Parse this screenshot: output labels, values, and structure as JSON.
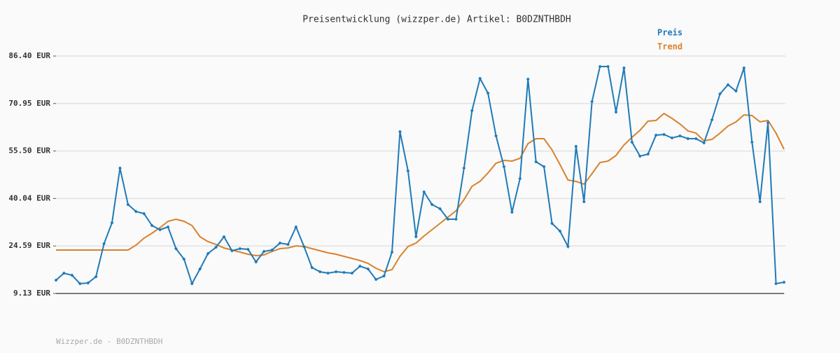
{
  "chart_data": {
    "type": "line",
    "title": "Preisentwicklung (wizzper.de) Artikel: B0DZNTHBDH",
    "footer": "Wizzper.de - B0DZNTHBDH",
    "ylim": [
      9.13,
      86.4
    ],
    "yticks": [
      {
        "value": 9.13,
        "label": "9.13 EUR"
      },
      {
        "value": 24.59,
        "label": "24.59 EUR"
      },
      {
        "value": 40.04,
        "label": "40.04 EUR"
      },
      {
        "value": 55.5,
        "label": "55.50 EUR"
      },
      {
        "value": 70.95,
        "label": "70.95 EUR"
      },
      {
        "value": 86.4,
        "label": "86.40 EUR"
      }
    ],
    "grid": true,
    "legend": "top-right",
    "series": [
      {
        "name": "Preis",
        "color": "#1f7ab8",
        "markers": true,
        "values": [
          13.46,
          15.74,
          15.06,
          12.32,
          12.55,
          14.6,
          25.31,
          32.15,
          49.93,
          38.08,
          35.8,
          35.12,
          31.24,
          29.87,
          30.78,
          23.72,
          20.3,
          12.32,
          17.11,
          22.12,
          24.17,
          27.59,
          23.03,
          23.72,
          23.49,
          19.39,
          22.81,
          23.26,
          25.54,
          25.09,
          30.78,
          24.4,
          17.56,
          16.2,
          15.74,
          16.2,
          15.97,
          15.74,
          18.02,
          17.11,
          13.69,
          14.83,
          22.58,
          61.79,
          49.02,
          27.59,
          42.18,
          38.08,
          36.71,
          33.29,
          33.29,
          49.93,
          68.62,
          79.11,
          74.32,
          60.42,
          50.39,
          35.57,
          46.51,
          78.88,
          51.98,
          50.39,
          31.92,
          29.42,
          24.4,
          57.0,
          38.99,
          71.59,
          82.98,
          82.98,
          68.17,
          82.53,
          58.37,
          53.81,
          54.49,
          60.65,
          60.87,
          59.73,
          60.42,
          59.51,
          59.51,
          58.14,
          65.66,
          74.09,
          77.06,
          75.01,
          82.53,
          58.37,
          38.99,
          64.75,
          12.32,
          12.78
        ]
      },
      {
        "name": "Trend",
        "color": "#d9822b",
        "markers": false,
        "values": [
          23.26,
          23.26,
          23.26,
          23.26,
          23.26,
          23.26,
          23.26,
          23.26,
          23.26,
          23.26,
          24.86,
          27.14,
          28.73,
          30.56,
          32.61,
          33.29,
          32.61,
          31.24,
          27.59,
          26.0,
          25.09,
          23.95,
          23.26,
          22.58,
          21.89,
          21.44,
          21.67,
          22.81,
          23.72,
          23.95,
          24.63,
          24.4,
          23.72,
          23.03,
          22.35,
          21.89,
          21.21,
          20.53,
          19.84,
          18.93,
          17.34,
          16.2,
          16.88,
          21.21,
          24.4,
          25.54,
          27.82,
          29.87,
          31.92,
          33.97,
          36.03,
          39.67,
          44.0,
          45.6,
          48.34,
          51.53,
          52.44,
          52.21,
          53.12,
          57.91,
          59.51,
          59.51,
          55.86,
          51.07,
          46.06,
          45.6,
          44.69,
          48.11,
          51.76,
          52.21,
          54.04,
          57.45,
          59.96,
          62.24,
          65.21,
          65.43,
          67.71,
          66.12,
          64.29,
          62.01,
          61.33,
          58.82,
          59.28,
          61.33,
          63.61,
          64.98,
          67.26,
          67.03,
          64.98,
          65.43,
          61.33,
          56.09
        ]
      }
    ]
  }
}
